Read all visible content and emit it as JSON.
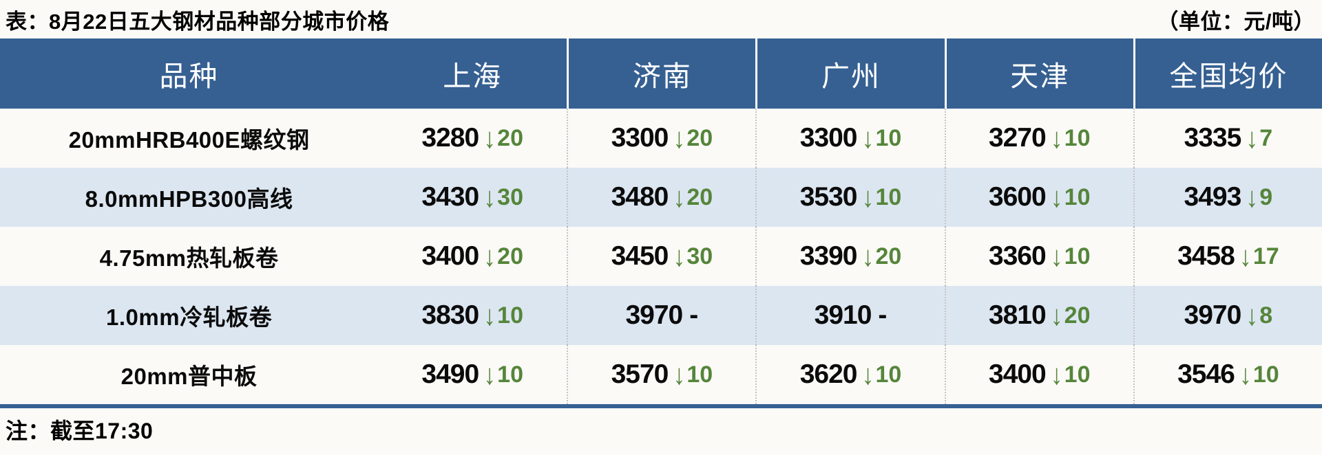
{
  "title": "表：8月22日五大钢材品种部分城市价格",
  "unit": "（单位：元/吨）",
  "note": "注：截至17:30",
  "colors": {
    "header_bg": "#366092",
    "header_text": "#FFFFFF",
    "row_bg": "#FBFAF7",
    "row_alt_bg": "#DCE6F1",
    "down_green": "#55853A",
    "divider_blue": "#366092",
    "page_bg": "#FBFAF7"
  },
  "chart_data": {
    "type": "table",
    "title": "表：8月22日五大钢材品种部分城市价格",
    "unit": "元/吨",
    "columns": [
      "品种",
      "上海",
      "济南",
      "广州",
      "天津",
      "全国均价"
    ],
    "rows": [
      {
        "product": "20mmHRB400E螺纹钢",
        "cells": [
          {
            "price": "3280",
            "change": "20",
            "direction": "down"
          },
          {
            "price": "3300",
            "change": "20",
            "direction": "down"
          },
          {
            "price": "3300",
            "change": "10",
            "direction": "down"
          },
          {
            "price": "3270",
            "change": "10",
            "direction": "down"
          },
          {
            "price": "3335",
            "change": "7",
            "direction": "down"
          }
        ]
      },
      {
        "product": "8.0mmHPB300高线",
        "cells": [
          {
            "price": "3430",
            "change": "30",
            "direction": "down"
          },
          {
            "price": "3480",
            "change": "20",
            "direction": "down"
          },
          {
            "price": "3530",
            "change": "10",
            "direction": "down"
          },
          {
            "price": "3600",
            "change": "10",
            "direction": "down"
          },
          {
            "price": "3493",
            "change": "9",
            "direction": "down"
          }
        ]
      },
      {
        "product": "4.75mm热轧板卷",
        "cells": [
          {
            "price": "3400",
            "change": "20",
            "direction": "down"
          },
          {
            "price": "3450",
            "change": "30",
            "direction": "down"
          },
          {
            "price": "3390",
            "change": "20",
            "direction": "down"
          },
          {
            "price": "3360",
            "change": "10",
            "direction": "down"
          },
          {
            "price": "3458",
            "change": "17",
            "direction": "down"
          }
        ]
      },
      {
        "product": "1.0mm冷轧板卷",
        "cells": [
          {
            "price": "3830",
            "change": "10",
            "direction": "down"
          },
          {
            "price": "3970",
            "change": "-",
            "direction": "flat"
          },
          {
            "price": "3910",
            "change": "-",
            "direction": "flat"
          },
          {
            "price": "3810",
            "change": "20",
            "direction": "down"
          },
          {
            "price": "3970",
            "change": "8",
            "direction": "down"
          }
        ]
      },
      {
        "product": "20mm普中板",
        "cells": [
          {
            "price": "3490",
            "change": "10",
            "direction": "down"
          },
          {
            "price": "3570",
            "change": "10",
            "direction": "down"
          },
          {
            "price": "3620",
            "change": "10",
            "direction": "down"
          },
          {
            "price": "3400",
            "change": "10",
            "direction": "down"
          },
          {
            "price": "3546",
            "change": "10",
            "direction": "down"
          }
        ]
      }
    ]
  },
  "icons": {
    "down_arrow": "↓"
  }
}
